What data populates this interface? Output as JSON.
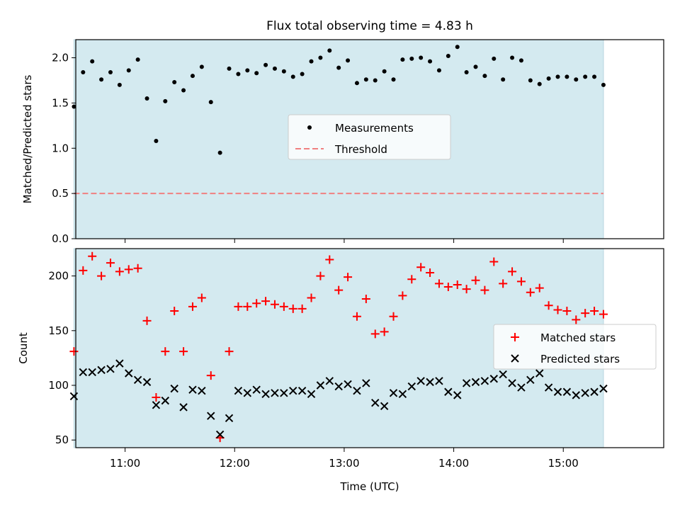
{
  "title": "Flux total observing time = 4.83 h",
  "xlabel": "Time (UTC)",
  "x_ticks": [
    "11:00",
    "12:00",
    "13:00",
    "14:00",
    "15:00"
  ],
  "colors": {
    "shade": "#d4eaf0",
    "measurement": "#000000",
    "threshold": "#f08080",
    "matched": "#ff0000",
    "predicted": "#000000"
  },
  "chart_data": [
    {
      "type": "scatter",
      "ylabel": "Matched/Predicted stars",
      "xlim": [
        "10:33",
        "15:55"
      ],
      "ylim": [
        0,
        2.2
      ],
      "y_ticks": [
        "0.0",
        "0.5",
        "1.0",
        "1.5",
        "2.0"
      ],
      "observing_window": [
        "10:32",
        "15:22"
      ],
      "threshold": 0.5,
      "legend": {
        "position": "center",
        "entries": [
          "Measurements",
          "Threshold"
        ]
      },
      "series": [
        {
          "name": "Measurements",
          "x": [
            "10:32",
            "10:37",
            "10:42",
            "10:47",
            "10:52",
            "10:57",
            "11:02",
            "11:07",
            "11:12",
            "11:17",
            "11:22",
            "11:27",
            "11:32",
            "11:37",
            "11:42",
            "11:47",
            "11:52",
            "11:57",
            "12:02",
            "12:07",
            "12:12",
            "12:17",
            "12:22",
            "12:27",
            "12:32",
            "12:37",
            "12:42",
            "12:47",
            "12:52",
            "12:57",
            "13:02",
            "13:07",
            "13:12",
            "13:17",
            "13:22",
            "13:27",
            "13:32",
            "13:37",
            "13:42",
            "13:47",
            "13:52",
            "13:57",
            "14:02",
            "14:07",
            "14:12",
            "14:17",
            "14:22",
            "14:27",
            "14:32",
            "14:37",
            "14:42",
            "14:47",
            "14:52",
            "14:57",
            "15:02",
            "15:07",
            "15:12",
            "15:17",
            "15:22"
          ],
          "values": [
            1.46,
            1.84,
            1.96,
            1.76,
            1.84,
            1.7,
            1.86,
            1.98,
            1.55,
            1.08,
            1.52,
            1.73,
            1.64,
            1.8,
            1.9,
            1.51,
            0.95,
            1.88,
            1.82,
            1.86,
            1.83,
            1.92,
            1.88,
            1.85,
            1.79,
            1.82,
            1.96,
            2.0,
            2.08,
            1.89,
            1.97,
            1.72,
            1.76,
            1.75,
            1.85,
            1.76,
            1.98,
            1.99,
            2.0,
            1.96,
            1.86,
            2.02,
            2.12,
            1.84,
            1.9,
            1.8,
            1.99,
            1.76,
            2.0,
            1.97,
            1.75,
            1.71,
            1.77,
            1.79,
            1.79,
            1.76,
            1.79,
            1.79,
            1.7
          ]
        }
      ]
    },
    {
      "type": "scatter",
      "ylabel": "Count",
      "xlim": [
        "10:33",
        "15:55"
      ],
      "ylim": [
        43,
        225
      ],
      "y_ticks": [
        "50",
        "100",
        "150",
        "200"
      ],
      "observing_window": [
        "10:32",
        "15:22"
      ],
      "legend": {
        "position": "center-right",
        "entries": [
          "Matched stars",
          "Predicted stars"
        ]
      },
      "series": [
        {
          "name": "Matched stars",
          "x": [
            "10:32",
            "10:37",
            "10:42",
            "10:47",
            "10:52",
            "10:57",
            "11:02",
            "11:07",
            "11:12",
            "11:17",
            "11:22",
            "11:27",
            "11:32",
            "11:37",
            "11:42",
            "11:47",
            "11:52",
            "11:57",
            "12:02",
            "12:07",
            "12:12",
            "12:17",
            "12:22",
            "12:27",
            "12:32",
            "12:37",
            "12:42",
            "12:47",
            "12:52",
            "12:57",
            "13:02",
            "13:07",
            "13:12",
            "13:17",
            "13:22",
            "13:27",
            "13:32",
            "13:37",
            "13:42",
            "13:47",
            "13:52",
            "13:57",
            "14:02",
            "14:07",
            "14:12",
            "14:17",
            "14:22",
            "14:27",
            "14:32",
            "14:37",
            "14:42",
            "14:47",
            "14:52",
            "14:57",
            "15:02",
            "15:07",
            "15:12",
            "15:17",
            "15:22"
          ],
          "values": [
            131,
            205,
            218,
            200,
            212,
            204,
            206,
            207,
            159,
            89,
            131,
            168,
            131,
            172,
            180,
            109,
            52,
            131,
            172,
            172,
            175,
            177,
            174,
            172,
            170,
            170,
            180,
            200,
            215,
            187,
            199,
            163,
            179,
            147,
            149,
            163,
            182,
            197,
            208,
            203,
            193,
            190,
            192,
            188,
            196,
            187,
            213,
            193,
            204,
            195,
            185,
            189,
            173,
            169,
            168,
            160,
            166,
            168,
            165
          ]
        },
        {
          "name": "Predicted stars",
          "x": [
            "10:32",
            "10:37",
            "10:42",
            "10:47",
            "10:52",
            "10:57",
            "11:02",
            "11:07",
            "11:12",
            "11:17",
            "11:22",
            "11:27",
            "11:32",
            "11:37",
            "11:42",
            "11:47",
            "11:52",
            "11:57",
            "12:02",
            "12:07",
            "12:12",
            "12:17",
            "12:22",
            "12:27",
            "12:32",
            "12:37",
            "12:42",
            "12:47",
            "12:52",
            "12:57",
            "13:02",
            "13:07",
            "13:12",
            "13:17",
            "13:22",
            "13:27",
            "13:32",
            "13:37",
            "13:42",
            "13:47",
            "13:52",
            "13:57",
            "14:02",
            "14:07",
            "14:12",
            "14:17",
            "14:22",
            "14:27",
            "14:32",
            "14:37",
            "14:42",
            "14:47",
            "14:52",
            "14:57",
            "15:02",
            "15:07",
            "15:12",
            "15:17",
            "15:22"
          ],
          "values": [
            90,
            112,
            112,
            114,
            115,
            120,
            111,
            105,
            103,
            82,
            86,
            97,
            80,
            96,
            95,
            72,
            55,
            70,
            95,
            93,
            96,
            92,
            93,
            93,
            95,
            95,
            92,
            100,
            104,
            99,
            101,
            95,
            102,
            84,
            81,
            93,
            92,
            99,
            104,
            103,
            104,
            94,
            91,
            102,
            103,
            104,
            106,
            110,
            102,
            98,
            105,
            111,
            98,
            94,
            94,
            91,
            93,
            94,
            97
          ]
        }
      ]
    }
  ]
}
